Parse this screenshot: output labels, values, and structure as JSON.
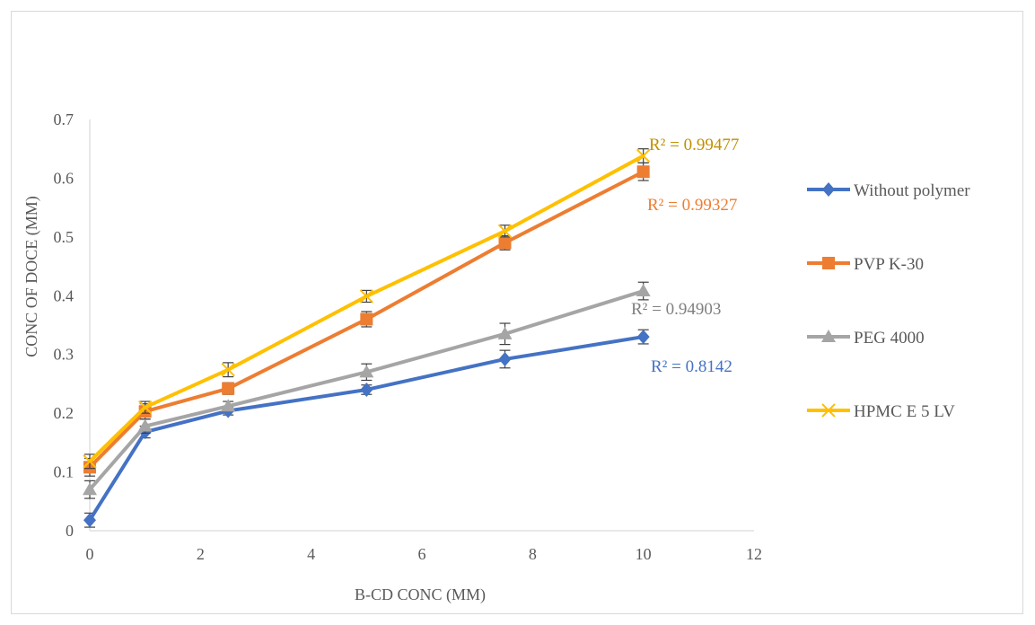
{
  "chart_data": {
    "type": "line",
    "title": "",
    "xlabel": "B-CD CONC (MM)",
    "ylabel": "CONC OF DOCE (MM)",
    "xlim": [
      0,
      12
    ],
    "ylim": [
      0,
      0.7
    ],
    "xticks": [
      0,
      2,
      4,
      6,
      8,
      10,
      12
    ],
    "yticks": [
      0,
      0.1,
      0.2,
      0.3,
      0.4,
      0.5,
      0.6,
      0.7
    ],
    "xtick_labels": [
      "0",
      "2",
      "4",
      "6",
      "8",
      "10",
      "12"
    ],
    "ytick_labels": [
      "0",
      "0.1",
      "0.2",
      "0.3",
      "0.4",
      "0.5",
      "0.6",
      "0.7"
    ],
    "grid": false,
    "legend": "right",
    "x": [
      0,
      1,
      2.5,
      5,
      7.5,
      10
    ],
    "series": [
      {
        "name": "Without polymer",
        "color": "#4472C4",
        "marker": "diamond",
        "values": [
          0.018,
          0.168,
          0.204,
          0.24,
          0.292,
          0.33
        ],
        "errors": [
          0.012,
          0.01,
          0.007,
          0.008,
          0.015,
          0.012
        ],
        "r2_label": "R² = 0.8142"
      },
      {
        "name": "PVP K-30",
        "color": "#ED7D31",
        "marker": "square",
        "values": [
          0.108,
          0.203,
          0.242,
          0.36,
          0.49,
          0.611
        ],
        "errors": [
          0.015,
          0.013,
          0.01,
          0.013,
          0.012,
          0.015
        ],
        "r2_label": "R² = 0.99327"
      },
      {
        "name": "PEG 4000",
        "color": "#A5A5A5",
        "marker": "triangle",
        "values": [
          0.07,
          0.178,
          0.212,
          0.27,
          0.335,
          0.408
        ],
        "errors": [
          0.015,
          0.012,
          0.008,
          0.014,
          0.018,
          0.015
        ],
        "r2_label": "R² = 0.94903"
      },
      {
        "name": "HPMC E 5 LV",
        "color": "#FFC000",
        "marker": "x",
        "values": [
          0.118,
          0.21,
          0.274,
          0.399,
          0.51,
          0.638
        ],
        "errors": [
          0.012,
          0.01,
          0.012,
          0.01,
          0.01,
          0.012
        ],
        "r2_label": "R² = 0.99477"
      }
    ],
    "r2_label_colors": [
      "#4472C4",
      "#ED7D31",
      "#808080",
      "#BF9000"
    ]
  }
}
